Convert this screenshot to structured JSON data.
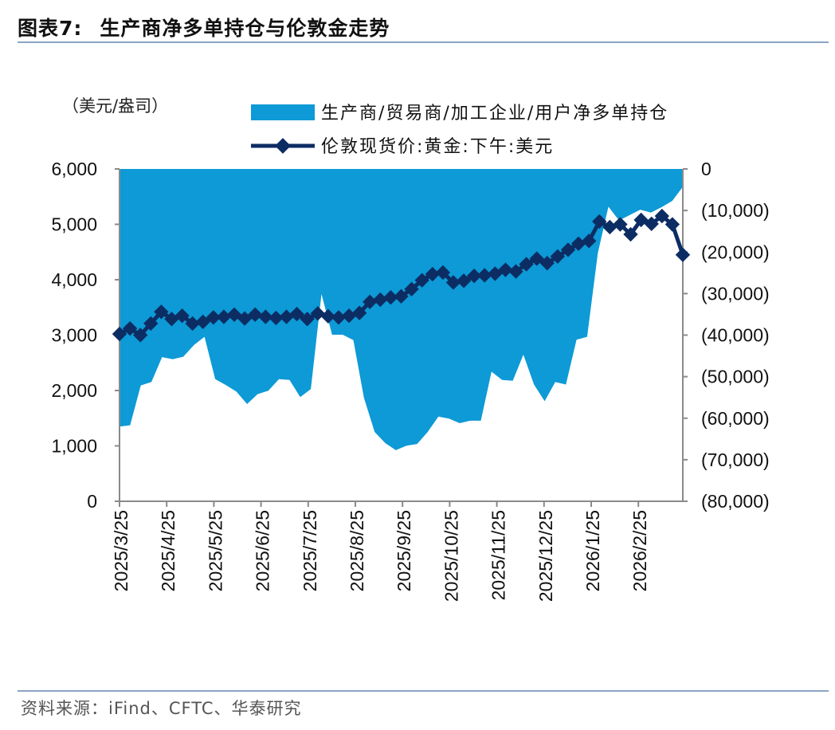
{
  "header": {
    "figure_label": "图表7:",
    "title": "生产商净多单持仓与伦敦金走势"
  },
  "footer": {
    "source": "资料来源：iFind、CFTC、华泰研究"
  },
  "colors": {
    "area": "#0d9ad6",
    "line": "#0c2d63",
    "axis": "#8a8a8a",
    "rule": "#8aa3c4"
  },
  "chart_data": {
    "type": "area+line",
    "unit_label": "（美元/盎司）",
    "legend": {
      "area": "生产商/贸易商/加工企业/用户净多单持仓",
      "line": "伦敦现货价:黄金:下午:美元"
    },
    "left_axis": {
      "range": [
        0,
        6000
      ],
      "ticks": [
        0,
        1000,
        2000,
        3000,
        4000,
        5000,
        6000
      ],
      "tick_labels": [
        "0",
        "1,000",
        "2,000",
        "3,000",
        "4,000",
        "5,000",
        "6,000"
      ]
    },
    "right_axis": {
      "range": [
        -80000,
        0
      ],
      "ticks": [
        0,
        -10000,
        -20000,
        -30000,
        -40000,
        -50000,
        -60000,
        -70000,
        -80000
      ],
      "tick_labels": [
        "0",
        "(10,000)",
        "(20,000)",
        "(30,000)",
        "(40,000)",
        "(50,000)",
        "(60,000)",
        "(70,000)",
        "(80,000)"
      ]
    },
    "x_tick_labels": [
      "2025/3/25",
      "2025/4/25",
      "2025/5/25",
      "2025/6/25",
      "2025/7/25",
      "2025/8/25",
      "2025/9/25",
      "2025/10/25",
      "2025/11/25",
      "2025/12/25",
      "2026/1/25",
      "2026/2/25"
    ],
    "series": [
      {
        "name": "生产商/贸易商/加工企业/用户净多单持仓",
        "axis": "right",
        "type": "area",
        "values": [
          -62000,
          -61700,
          -52100,
          -51300,
          -45300,
          -45800,
          -45200,
          -42400,
          -40400,
          -50600,
          -52000,
          -53600,
          -56600,
          -54200,
          -53400,
          -50600,
          -50800,
          -54900,
          -53000,
          -30100,
          -39900,
          -39900,
          -41200,
          -55100,
          -63300,
          -66000,
          -67700,
          -66600,
          -66200,
          -63300,
          -59600,
          -60100,
          -61200,
          -60600,
          -60600,
          -48800,
          -50800,
          -51000,
          -44700,
          -51900,
          -55900,
          -51300,
          -51900,
          -41100,
          -40400,
          -20300,
          -9100,
          -12400,
          -11100,
          -9800,
          -10500,
          -9200,
          -7700,
          -4300
        ]
      },
      {
        "name": "伦敦现货价:黄金:下午:美元",
        "axis": "left",
        "type": "line",
        "values": [
          3020,
          3120,
          3000,
          3210,
          3420,
          3290,
          3350,
          3210,
          3240,
          3320,
          3330,
          3370,
          3300,
          3370,
          3330,
          3310,
          3330,
          3380,
          3290,
          3390,
          3340,
          3320,
          3350,
          3400,
          3600,
          3640,
          3680,
          3700,
          3830,
          3990,
          4100,
          4130,
          3950,
          3980,
          4070,
          4080,
          4110,
          4180,
          4150,
          4280,
          4380,
          4300,
          4420,
          4540,
          4650,
          4700,
          5050,
          4950,
          5000,
          4820,
          5080,
          5010,
          5150,
          5000,
          4450
        ]
      }
    ]
  }
}
